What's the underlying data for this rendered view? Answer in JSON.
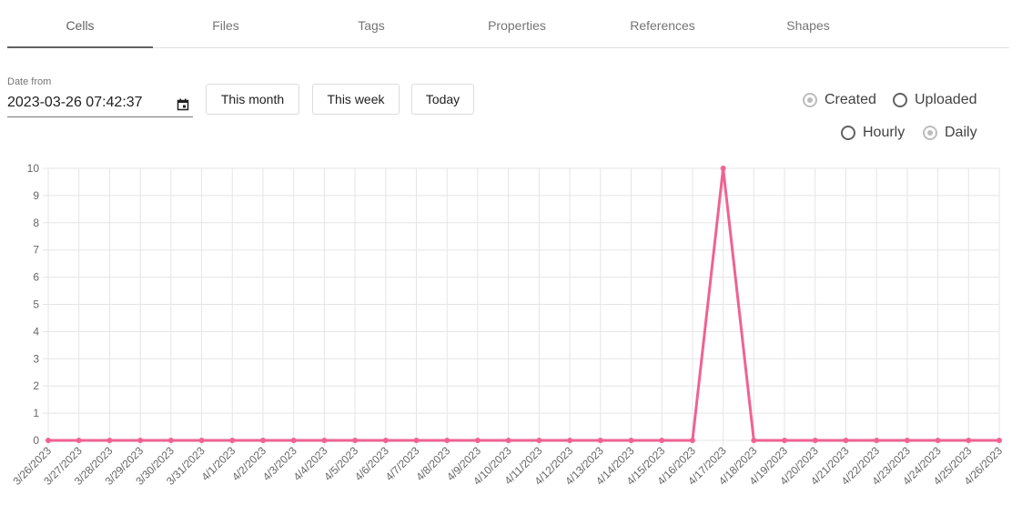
{
  "tabs": [
    {
      "label": "Cells",
      "active": true
    },
    {
      "label": "Files",
      "active": false
    },
    {
      "label": "Tags",
      "active": false
    },
    {
      "label": "Properties",
      "active": false
    },
    {
      "label": "References",
      "active": false
    },
    {
      "label": "Shapes",
      "active": false
    }
  ],
  "filters": {
    "date_from_label": "Date from",
    "date_from_value": "2023-03-26 07:42:37",
    "buttons": {
      "this_month": "This month",
      "this_week": "This week",
      "today": "Today"
    },
    "radios": {
      "created": {
        "label": "Created",
        "checked": true
      },
      "uploaded": {
        "label": "Uploaded",
        "checked": false
      },
      "hourly": {
        "label": "Hourly",
        "checked": false
      },
      "daily": {
        "label": "Daily",
        "checked": true
      }
    }
  },
  "colors": {
    "line": "#f06292",
    "grid": "#e5e5e5"
  },
  "chart_data": {
    "type": "line",
    "x": [
      "3/26/2023",
      "3/27/2023",
      "3/28/2023",
      "3/29/2023",
      "3/30/2023",
      "3/31/2023",
      "4/1/2023",
      "4/2/2023",
      "4/3/2023",
      "4/4/2023",
      "4/5/2023",
      "4/6/2023",
      "4/7/2023",
      "4/8/2023",
      "4/9/2023",
      "4/10/2023",
      "4/11/2023",
      "4/12/2023",
      "4/13/2023",
      "4/14/2023",
      "4/15/2023",
      "4/16/2023",
      "4/17/2023",
      "4/18/2023",
      "4/19/2023",
      "4/20/2023",
      "4/21/2023",
      "4/22/2023",
      "4/23/2023",
      "4/24/2023",
      "4/25/2023",
      "4/26/2023"
    ],
    "series": [
      {
        "values": [
          0,
          0,
          0,
          0,
          0,
          0,
          0,
          0,
          0,
          0,
          0,
          0,
          0,
          0,
          0,
          0,
          0,
          0,
          0,
          0,
          0,
          0,
          10,
          0,
          0,
          0,
          0,
          0,
          0,
          0,
          0,
          0
        ]
      }
    ],
    "ylim": [
      0,
      10
    ],
    "yticks": [
      0,
      1,
      2,
      3,
      4,
      5,
      6,
      7,
      8,
      9,
      10
    ],
    "grid": true
  }
}
